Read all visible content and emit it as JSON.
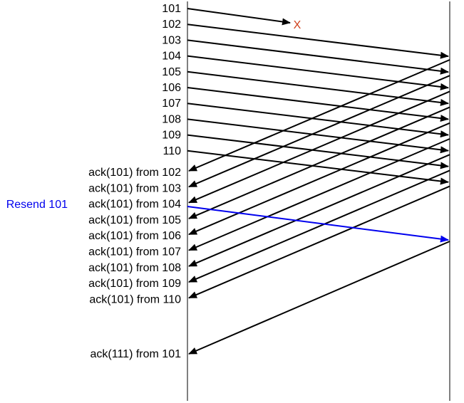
{
  "sender_packets": [
    {
      "seq": "101",
      "lost": true
    },
    {
      "seq": "102"
    },
    {
      "seq": "103"
    },
    {
      "seq": "104"
    },
    {
      "seq": "105"
    },
    {
      "seq": "106"
    },
    {
      "seq": "107"
    },
    {
      "seq": "108"
    },
    {
      "seq": "109"
    },
    {
      "seq": "110"
    }
  ],
  "loss_marker": "X",
  "acks": [
    "ack(101) from 102",
    "ack(101) from 103",
    "ack(101) from 104",
    "ack(101) from 105",
    "ack(101) from 106",
    "ack(101) from 107",
    "ack(101) from 108",
    "ack(101) from 109",
    "ack(101) from 110"
  ],
  "resend": {
    "label": "Resend 101",
    "color": "#0000ee"
  },
  "final_ack": "ack(111) from 101",
  "colors": {
    "line": "#000000",
    "loss": "#d0401c",
    "timeline": "#808080"
  }
}
